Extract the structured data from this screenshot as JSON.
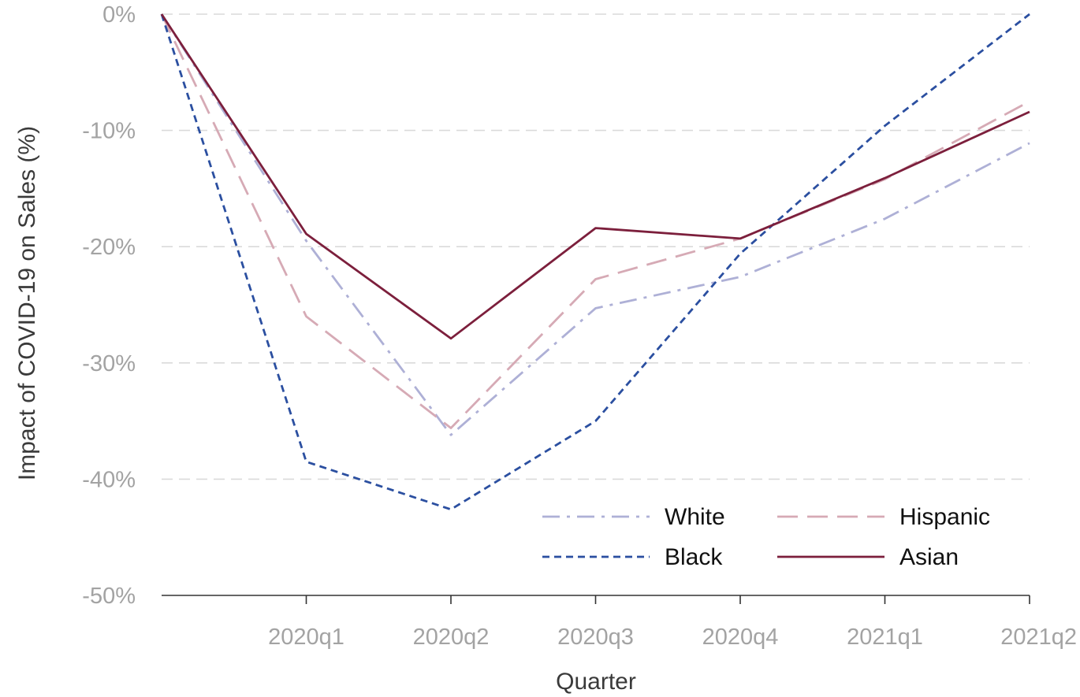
{
  "chart_data": {
    "type": "line",
    "title": "",
    "xlabel": "Quarter",
    "ylabel": "Impact of COVID-19 on Sales (%)",
    "x": [
      "",
      "2020q1",
      "2020q2",
      "2020q3",
      "2020q4",
      "2021q1",
      "2021q2"
    ],
    "x_tick_labels": [
      "2020q1",
      "2020q2",
      "2020q3",
      "2020q4",
      "2021q1",
      "2021q2"
    ],
    "ylim": [
      -50,
      0
    ],
    "y_ticks": [
      0,
      -10,
      -20,
      -30,
      -40,
      -50
    ],
    "y_tick_labels": [
      "0%",
      "-10%",
      "-20%",
      "-30%",
      "-40%",
      "-50%"
    ],
    "grid": "horizontal dashed",
    "legend_position": "bottom-right",
    "series": [
      {
        "name": "White",
        "values": [
          0,
          -19.5,
          -36.2,
          -25.3,
          -22.6,
          -17.6,
          -11.1
        ],
        "color": "#aeb0d6",
        "dash": "dash-dot"
      },
      {
        "name": "Hispanic",
        "values": [
          0,
          -26.0,
          -35.6,
          -22.8,
          -19.3,
          -14.2,
          -7.5
        ],
        "color": "#d6aab5",
        "dash": "long-dash"
      },
      {
        "name": "Black",
        "values": [
          0,
          -38.5,
          -42.6,
          -35.0,
          -20.6,
          -9.6,
          0
        ],
        "color": "#2b4fa0",
        "dash": "short-dash"
      },
      {
        "name": "Asian",
        "values": [
          0,
          -18.9,
          -27.9,
          -18.4,
          -19.3,
          -14.1,
          -8.4
        ],
        "color": "#7c1f3c",
        "dash": "solid"
      }
    ]
  }
}
